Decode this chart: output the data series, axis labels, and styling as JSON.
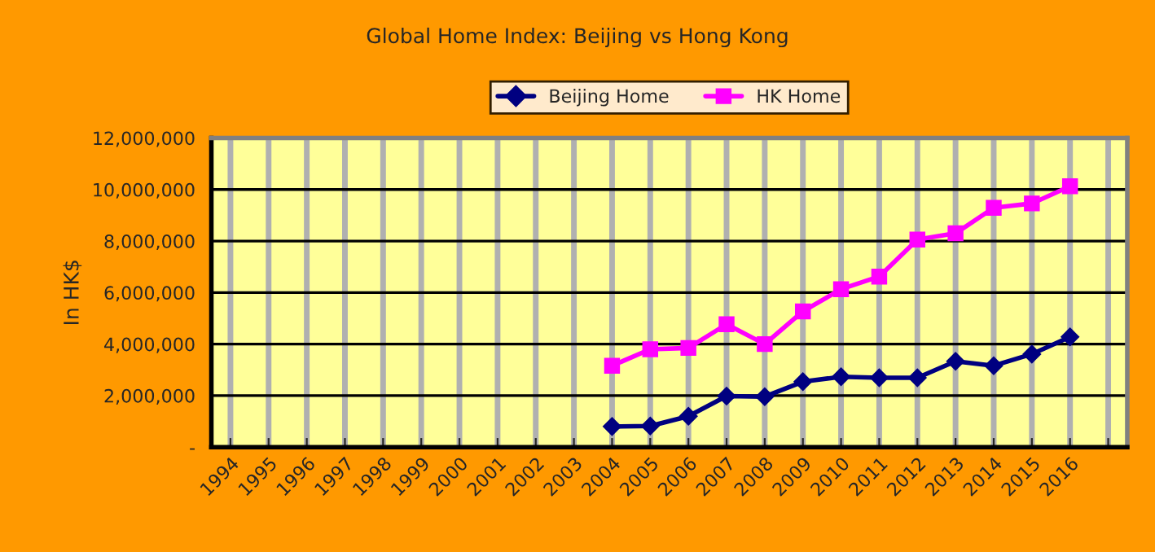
{
  "chart_data": {
    "type": "line",
    "title": "Global Home Index: Beijing vs Hong Kong",
    "ylabel": "In HK$",
    "categories": [
      "1994",
      "1995",
      "1996",
      "1997",
      "1998",
      "1999",
      "2000",
      "2001",
      "2002",
      "2003",
      "2004",
      "2005",
      "2006",
      "2007",
      "2008",
      "2009",
      "2010",
      "2011",
      "2012",
      "2013",
      "2014",
      "2015",
      "2016",
      null
    ],
    "series": [
      {
        "name": "Beijing Home",
        "color": "#000080",
        "marker": "diamond",
        "values": [
          null,
          null,
          null,
          null,
          null,
          null,
          null,
          null,
          null,
          null,
          800000,
          820000,
          1200000,
          1980000,
          1960000,
          2540000,
          2730000,
          2690000,
          2690000,
          3330000,
          3160000,
          3610000,
          4280000,
          null
        ]
      },
      {
        "name": "HK Home",
        "color": "#ff00ff",
        "marker": "square",
        "values": [
          null,
          null,
          null,
          null,
          null,
          null,
          null,
          null,
          null,
          null,
          3160000,
          3800000,
          3850000,
          4770000,
          4000000,
          5270000,
          6130000,
          6620000,
          8060000,
          8300000,
          9290000,
          9460000,
          10130000,
          null
        ]
      }
    ],
    "ylim": [
      0,
      12000000
    ],
    "yticks": [
      {
        "value": 0,
        "label": "-"
      },
      {
        "value": 2000000,
        "label": "2,000,000"
      },
      {
        "value": 4000000,
        "label": "4,000,000"
      },
      {
        "value": 6000000,
        "label": "6,000,000"
      },
      {
        "value": 8000000,
        "label": "8,000,000"
      },
      {
        "value": 10000000,
        "label": "10,000,000"
      },
      {
        "value": 12000000,
        "label": "12,000,000"
      }
    ],
    "grid": true,
    "legend": "top",
    "line_style": "solid"
  }
}
